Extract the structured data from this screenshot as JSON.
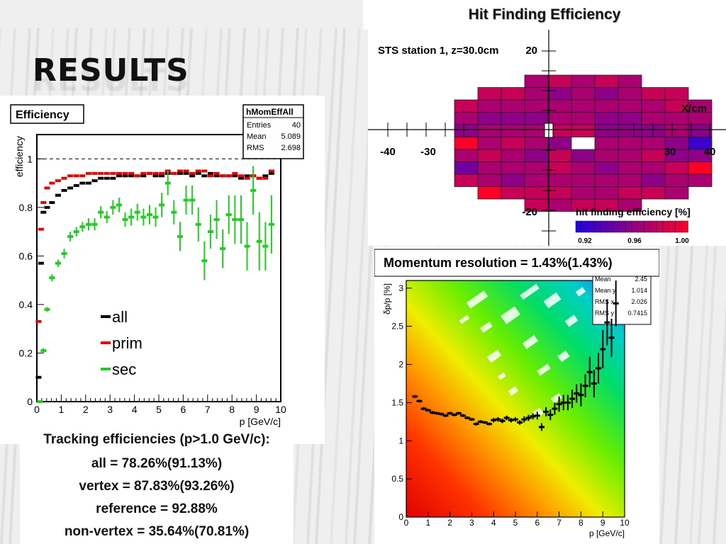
{
  "slide": {
    "title": "RESULTS"
  },
  "chart_data": [
    {
      "type": "scatter",
      "title": "Efficiency",
      "xlabel": "p [GeV/c]",
      "ylabel": "efficiency",
      "xlim": [
        0,
        10
      ],
      "ylim": [
        0,
        1.1
      ],
      "xticks": [
        "0",
        "1",
        "2",
        "3",
        "4",
        "5",
        "6",
        "7",
        "8",
        "9",
        "10"
      ],
      "yticks": [
        "0",
        "0.2",
        "0.4",
        "0.6",
        "0.8",
        "1"
      ],
      "reference_line": 1,
      "stats": {
        "name": "hMomEffAll",
        "rows": [
          [
            "Entries",
            "40"
          ],
          [
            "Mean",
            "5.089"
          ],
          [
            "RMS",
            "2.698"
          ]
        ]
      },
      "legend_position": "center-left",
      "series": [
        {
          "name": "all",
          "color": "#000000",
          "x": [
            0.07,
            0.17,
            0.27,
            0.42,
            0.62,
            0.87,
            1.12,
            1.37,
            1.62,
            1.87,
            2.12,
            2.37,
            2.62,
            2.87,
            3.12,
            3.37,
            3.62,
            3.87,
            4.12,
            4.37,
            4.62,
            4.87,
            5.12,
            5.37,
            5.62,
            5.87,
            6.12,
            6.37,
            6.62,
            6.87,
            7.12,
            7.37,
            7.62,
            7.87,
            8.12,
            8.37,
            8.62,
            8.87,
            9.12,
            9.37,
            9.62
          ],
          "y": [
            0.1,
            0.57,
            0.78,
            0.8,
            0.82,
            0.85,
            0.87,
            0.88,
            0.89,
            0.9,
            0.9,
            0.91,
            0.92,
            0.92,
            0.92,
            0.93,
            0.93,
            0.93,
            0.93,
            0.93,
            0.94,
            0.93,
            0.93,
            0.94,
            0.94,
            0.94,
            0.94,
            0.93,
            0.94,
            0.93,
            0.94,
            0.93,
            0.93,
            0.93,
            0.93,
            0.92,
            0.93,
            0.93,
            0.92,
            0.93,
            0.94
          ]
        },
        {
          "name": "prim",
          "color": "#e00000",
          "x": [
            0.07,
            0.17,
            0.27,
            0.42,
            0.62,
            0.87,
            1.12,
            1.37,
            1.62,
            1.87,
            2.12,
            2.37,
            2.62,
            2.87,
            3.12,
            3.37,
            3.62,
            3.87,
            4.12,
            4.37,
            4.62,
            4.87,
            5.12,
            5.37,
            5.62,
            5.87,
            6.12,
            6.37,
            6.62,
            6.87,
            7.12,
            7.37,
            7.62,
            7.87,
            8.12,
            8.37,
            8.62,
            8.87,
            9.12,
            9.37,
            9.62
          ],
          "y": [
            0.33,
            0.71,
            0.82,
            0.88,
            0.9,
            0.91,
            0.92,
            0.93,
            0.93,
            0.93,
            0.94,
            0.94,
            0.94,
            0.94,
            0.94,
            0.94,
            0.94,
            0.94,
            0.93,
            0.94,
            0.94,
            0.94,
            0.94,
            0.95,
            0.94,
            0.95,
            0.95,
            0.94,
            0.95,
            0.95,
            0.93,
            0.94,
            0.93,
            0.93,
            0.94,
            0.93,
            0.92,
            0.93,
            0.92,
            0.92,
            0.95
          ]
        },
        {
          "name": "sec",
          "color": "#22cc22",
          "x": [
            0.12,
            0.27,
            0.42,
            0.62,
            0.87,
            1.12,
            1.37,
            1.62,
            1.87,
            2.12,
            2.37,
            2.62,
            2.87,
            3.12,
            3.37,
            3.62,
            3.87,
            4.12,
            4.37,
            4.62,
            4.87,
            5.12,
            5.37,
            5.62,
            5.87,
            6.12,
            6.37,
            6.62,
            6.87,
            7.12,
            7.37,
            7.62,
            7.87,
            8.12,
            8.37,
            8.62,
            8.87,
            9.12,
            9.37,
            9.62
          ],
          "y": [
            0.0,
            0.21,
            0.38,
            0.51,
            0.57,
            0.61,
            0.68,
            0.7,
            0.72,
            0.73,
            0.73,
            0.78,
            0.76,
            0.8,
            0.81,
            0.75,
            0.76,
            0.78,
            0.76,
            0.77,
            0.76,
            0.81,
            0.9,
            0.78,
            0.68,
            0.83,
            0.83,
            0.73,
            0.58,
            0.7,
            0.75,
            0.63,
            0.77,
            0.75,
            0.75,
            0.64,
            0.87,
            0.66,
            0.64,
            0.73
          ],
          "err": [
            0.0,
            0.01,
            0.01,
            0.015,
            0.015,
            0.02,
            0.02,
            0.02,
            0.02,
            0.025,
            0.025,
            0.025,
            0.025,
            0.03,
            0.03,
            0.03,
            0.035,
            0.035,
            0.035,
            0.04,
            0.04,
            0.05,
            0.05,
            0.05,
            0.06,
            0.06,
            0.06,
            0.07,
            0.08,
            0.07,
            0.08,
            0.08,
            0.08,
            0.1,
            0.1,
            0.1,
            0.1,
            0.12,
            0.1,
            0.12
          ]
        }
      ]
    },
    {
      "type": "heatmap",
      "title": "Hit Finding Efficiency",
      "subtitle": "STS station 1, z=30.0cm",
      "xlabel": "X/cm",
      "xticks": [
        "-40",
        "-30",
        "30",
        "40"
      ],
      "yticks": [
        "20",
        "-20"
      ],
      "colorbar": {
        "label": "hit finding efficiency [%]",
        "ticks": [
          "0.92",
          "0.96",
          "1.00"
        ],
        "range": [
          0.92,
          1.0
        ]
      },
      "cells": [
        [
          null,
          null,
          null,
          0.97,
          0.98,
          0.97,
          0.98,
          0.97,
          null,
          null,
          null
        ],
        [
          null,
          0.98,
          0.98,
          0.97,
          0.96,
          0.97,
          0.96,
          0.97,
          0.98,
          0.98,
          null
        ],
        [
          0.98,
          0.97,
          0.97,
          0.97,
          0.97,
          0.97,
          0.97,
          0.97,
          0.97,
          0.98,
          0.97
        ],
        [
          0.97,
          0.96,
          0.96,
          0.96,
          0.97,
          0.97,
          0.96,
          0.96,
          0.97,
          0.97,
          0.97
        ],
        [
          0.96,
          0.97,
          0.97,
          0.97,
          0.98,
          0.98,
          0.96,
          0.96,
          0.96,
          0.97,
          0.96
        ],
        [
          1.0,
          0.97,
          0.98,
          0.97,
          0.96,
          null,
          0.97,
          0.97,
          0.97,
          0.96,
          0.93
        ],
        [
          0.97,
          0.98,
          0.97,
          0.96,
          0.98,
          0.96,
          0.97,
          0.97,
          0.98,
          0.96,
          0.96
        ],
        [
          0.95,
          0.97,
          0.97,
          0.97,
          0.98,
          0.97,
          0.96,
          0.97,
          0.97,
          0.98,
          1.0
        ],
        [
          0.98,
          0.97,
          0.96,
          0.97,
          0.97,
          0.97,
          0.97,
          0.97,
          0.96,
          0.97,
          0.97
        ],
        [
          null,
          1.0,
          0.98,
          0.98,
          0.98,
          0.97,
          0.97,
          0.98,
          0.98,
          0.97,
          null
        ],
        [
          null,
          null,
          null,
          0.98,
          0.97,
          0.98,
          0.98,
          0.97,
          null,
          null,
          null
        ]
      ]
    },
    {
      "type": "scatter",
      "title": "Momentum resolution = 1.43%(1.43%)",
      "xlabel": "p [GeV/c]",
      "ylabel": "δp/p [%]",
      "xlim": [
        0,
        10
      ],
      "ylim": [
        0,
        3.1
      ],
      "xticks": [
        "0",
        "1",
        "2",
        "3",
        "4",
        "5",
        "6",
        "7",
        "8",
        "9",
        "10"
      ],
      "yticks": [
        "0",
        "0.5",
        "1",
        "1.5",
        "2",
        "2.5",
        "3"
      ],
      "stats": {
        "rows": [
          [
            "Mean",
            "2.45"
          ],
          [
            "Mean y",
            "1.014"
          ],
          [
            "RMS x",
            "2.026"
          ],
          [
            "RMS y",
            "0.7415"
          ]
        ]
      },
      "series": [
        {
          "name": "",
          "color": "#000000",
          "x": [
            0.4,
            0.6,
            0.8,
            1.0,
            1.2,
            1.4,
            1.6,
            1.8,
            2.0,
            2.2,
            2.4,
            2.6,
            2.8,
            3.0,
            3.2,
            3.4,
            3.6,
            3.8,
            4.0,
            4.2,
            4.4,
            4.6,
            4.8,
            5.0,
            5.2,
            5.4,
            5.6,
            5.8,
            6.0,
            6.2,
            6.4,
            6.6,
            6.8,
            7.0,
            7.2,
            7.4,
            7.6,
            7.8,
            8.0,
            8.2,
            8.4,
            8.6,
            8.8,
            9.0,
            9.2,
            9.4,
            9.6
          ],
          "y": [
            1.58,
            1.52,
            1.42,
            1.4,
            1.37,
            1.36,
            1.35,
            1.33,
            1.36,
            1.34,
            1.36,
            1.33,
            1.3,
            1.28,
            1.22,
            1.25,
            1.24,
            1.22,
            1.27,
            1.28,
            1.26,
            1.3,
            1.27,
            1.28,
            1.24,
            1.28,
            1.3,
            1.32,
            1.33,
            1.18,
            1.38,
            1.34,
            1.42,
            1.48,
            1.5,
            1.5,
            1.55,
            1.62,
            1.6,
            1.72,
            1.9,
            1.75,
            1.95,
            2.2,
            2.55,
            2.35,
            2.8
          ],
          "err": [
            0.02,
            0.02,
            0.02,
            0.02,
            0.02,
            0.02,
            0.02,
            0.02,
            0.02,
            0.02,
            0.02,
            0.02,
            0.02,
            0.02,
            0.02,
            0.02,
            0.02,
            0.02,
            0.03,
            0.03,
            0.03,
            0.03,
            0.03,
            0.03,
            0.03,
            0.04,
            0.04,
            0.04,
            0.05,
            0.05,
            0.06,
            0.07,
            0.08,
            0.1,
            0.1,
            0.1,
            0.12,
            0.12,
            0.15,
            0.15,
            0.2,
            0.18,
            0.2,
            0.25,
            0.3,
            0.25,
            0.3
          ]
        }
      ]
    }
  ],
  "summary": {
    "heading": "Tracking efficiencies (p>1.0 GeV/c):",
    "lines": [
      "all = 78.26%(91.13%)",
      "vertex = 87.83%(93.26%)",
      "reference = 92.88%",
      "non-vertex = 35.64%(70.81%)"
    ]
  }
}
